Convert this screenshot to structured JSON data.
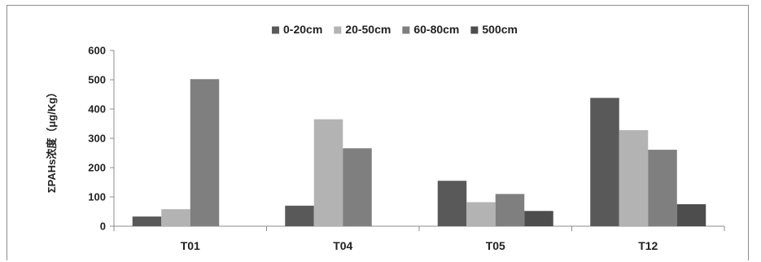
{
  "chart_data": {
    "type": "bar",
    "title": "",
    "xlabel": "",
    "ylabel": "ΣPAHs浓度（μg/Kg）",
    "ylim": [
      0,
      600
    ],
    "yticks": [
      0,
      100,
      200,
      300,
      400,
      500,
      600
    ],
    "grid": false,
    "legend_position": "top",
    "categories": [
      "T01",
      "T04",
      "T05",
      "T12"
    ],
    "series": [
      {
        "name": "0-20cm",
        "color": "#595959",
        "values": [
          33,
          70,
          155,
          438
        ]
      },
      {
        "name": "20-50cm",
        "color": "#b3b3b3",
        "values": [
          58,
          365,
          82,
          328
        ]
      },
      {
        "name": "60-80cm",
        "color": "#7f7f7f",
        "values": [
          502,
          266,
          110,
          261
        ]
      },
      {
        "name": "500cm",
        "color": "#4d4d4d",
        "values": [
          0,
          0,
          52,
          75
        ]
      }
    ]
  }
}
